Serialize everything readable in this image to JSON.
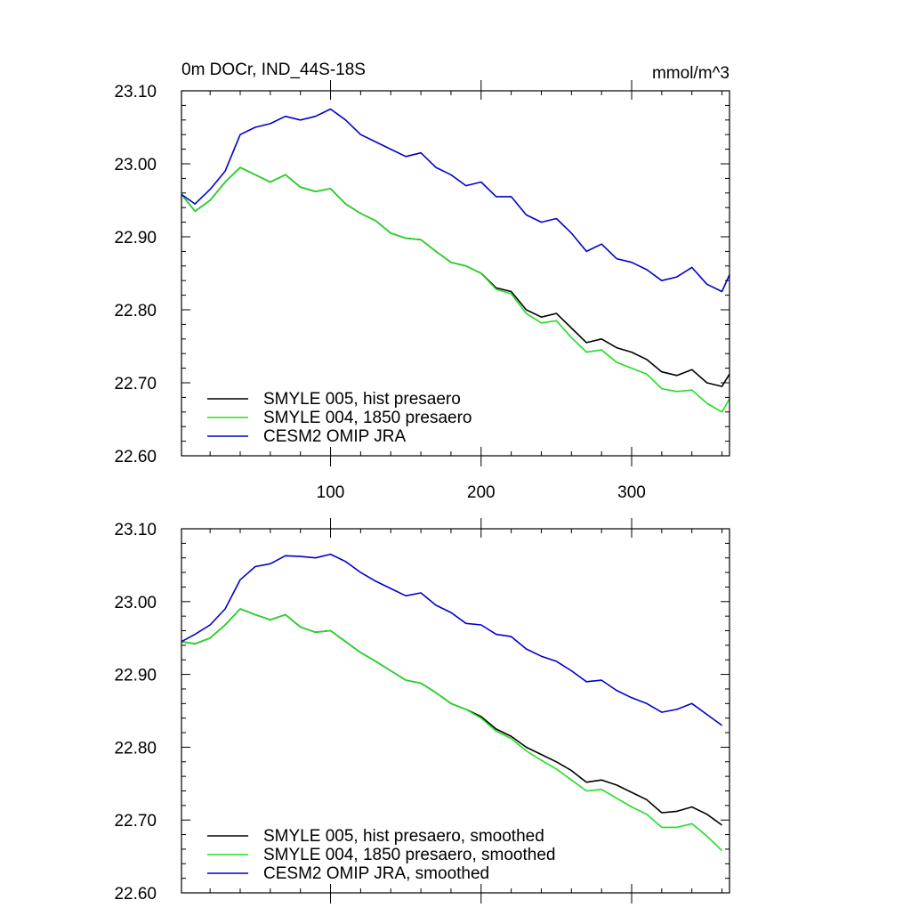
{
  "chart_data": [
    {
      "type": "line",
      "title": "0m DOCr, IND_44S-18S",
      "units": "mmol/m^3",
      "xlabel": "",
      "ylabel": "",
      "xlim": [
        1,
        365
      ],
      "ylim": [
        22.6,
        23.1
      ],
      "x_ticks": [
        100,
        200,
        300
      ],
      "y_ticks": [
        "22.60",
        "22.70",
        "22.80",
        "22.90",
        "23.00",
        "23.10"
      ],
      "grid": false,
      "legend_position": "bottom-left",
      "x": [
        1,
        10,
        20,
        30,
        40,
        50,
        60,
        70,
        80,
        90,
        100,
        110,
        120,
        130,
        140,
        150,
        160,
        170,
        180,
        190,
        200,
        210,
        220,
        230,
        240,
        250,
        260,
        270,
        280,
        290,
        300,
        310,
        320,
        330,
        340,
        350,
        360,
        365
      ],
      "series": [
        {
          "name": "SMYLE 005, hist presaero",
          "color": "#000000",
          "values": [
            22.958,
            22.935,
            22.95,
            22.975,
            22.995,
            22.985,
            22.975,
            22.985,
            22.968,
            22.962,
            22.966,
            22.945,
            22.932,
            22.922,
            22.905,
            22.898,
            22.896,
            22.88,
            22.865,
            22.86,
            22.85,
            22.83,
            22.825,
            22.8,
            22.79,
            22.795,
            22.775,
            22.755,
            22.76,
            22.748,
            22.742,
            22.732,
            22.715,
            22.71,
            22.718,
            22.7,
            22.695,
            22.712
          ]
        },
        {
          "name": "SMYLE 004, 1850 presaero",
          "color": "#22dd22",
          "values": [
            22.958,
            22.935,
            22.95,
            22.975,
            22.995,
            22.985,
            22.975,
            22.985,
            22.968,
            22.962,
            22.966,
            22.945,
            22.932,
            22.922,
            22.905,
            22.898,
            22.896,
            22.88,
            22.865,
            22.86,
            22.85,
            22.828,
            22.822,
            22.795,
            22.782,
            22.785,
            22.762,
            22.742,
            22.745,
            22.728,
            22.72,
            22.712,
            22.692,
            22.688,
            22.69,
            22.672,
            22.66,
            22.678
          ]
        },
        {
          "name": "CESM2 OMIP JRA",
          "color": "#0000cc",
          "values": [
            22.958,
            22.945,
            22.965,
            22.99,
            23.04,
            23.05,
            23.055,
            23.065,
            23.06,
            23.065,
            23.075,
            23.06,
            23.04,
            23.03,
            23.02,
            23.01,
            23.015,
            22.995,
            22.985,
            22.97,
            22.975,
            22.955,
            22.955,
            22.93,
            22.92,
            22.925,
            22.905,
            22.88,
            22.89,
            22.87,
            22.865,
            22.855,
            22.84,
            22.845,
            22.858,
            22.835,
            22.825,
            22.848
          ]
        }
      ]
    },
    {
      "type": "line",
      "title": "",
      "xlabel": "",
      "ylabel": "",
      "xlim": [
        1,
        365
      ],
      "ylim": [
        22.6,
        23.1
      ],
      "y_ticks": [
        "22.60",
        "22.70",
        "22.80",
        "22.90",
        "23.00",
        "23.10"
      ],
      "grid": false,
      "legend_position": "bottom-left",
      "x": [
        1,
        10,
        20,
        30,
        40,
        50,
        60,
        70,
        80,
        90,
        100,
        110,
        120,
        130,
        140,
        150,
        160,
        170,
        180,
        190,
        200,
        210,
        220,
        230,
        240,
        250,
        260,
        270,
        280,
        290,
        300,
        310,
        320,
        330,
        340,
        350,
        360
      ],
      "series": [
        {
          "name": "SMYLE 005, hist presaero, smoothed",
          "color": "#000000",
          "values": [
            22.945,
            22.942,
            22.95,
            22.968,
            22.99,
            22.982,
            22.975,
            22.982,
            22.965,
            22.958,
            22.96,
            22.945,
            22.93,
            22.918,
            22.905,
            22.892,
            22.888,
            22.875,
            22.86,
            22.852,
            22.842,
            22.825,
            22.815,
            22.8,
            22.79,
            22.78,
            22.768,
            22.752,
            22.755,
            22.748,
            22.738,
            22.728,
            22.71,
            22.712,
            22.718,
            22.708,
            22.693
          ]
        },
        {
          "name": "SMYLE 004, 1850 presaero, smoothed",
          "color": "#22dd22",
          "values": [
            22.945,
            22.942,
            22.95,
            22.968,
            22.99,
            22.982,
            22.975,
            22.982,
            22.965,
            22.958,
            22.96,
            22.945,
            22.93,
            22.918,
            22.905,
            22.892,
            22.888,
            22.875,
            22.86,
            22.852,
            22.84,
            22.822,
            22.812,
            22.795,
            22.782,
            22.77,
            22.755,
            22.74,
            22.742,
            22.73,
            22.718,
            22.708,
            22.69,
            22.69,
            22.695,
            22.678,
            22.658
          ]
        },
        {
          "name": "CESM2 OMIP JRA, smoothed",
          "color": "#0000cc",
          "values": [
            22.945,
            22.955,
            22.968,
            22.99,
            23.03,
            23.048,
            23.052,
            23.063,
            23.062,
            23.06,
            23.065,
            23.055,
            23.04,
            23.028,
            23.018,
            23.008,
            23.012,
            22.995,
            22.985,
            22.97,
            22.968,
            22.955,
            22.952,
            22.935,
            22.925,
            22.918,
            22.905,
            22.89,
            22.892,
            22.878,
            22.868,
            22.86,
            22.848,
            22.852,
            22.86,
            22.845,
            22.83
          ]
        }
      ]
    }
  ]
}
